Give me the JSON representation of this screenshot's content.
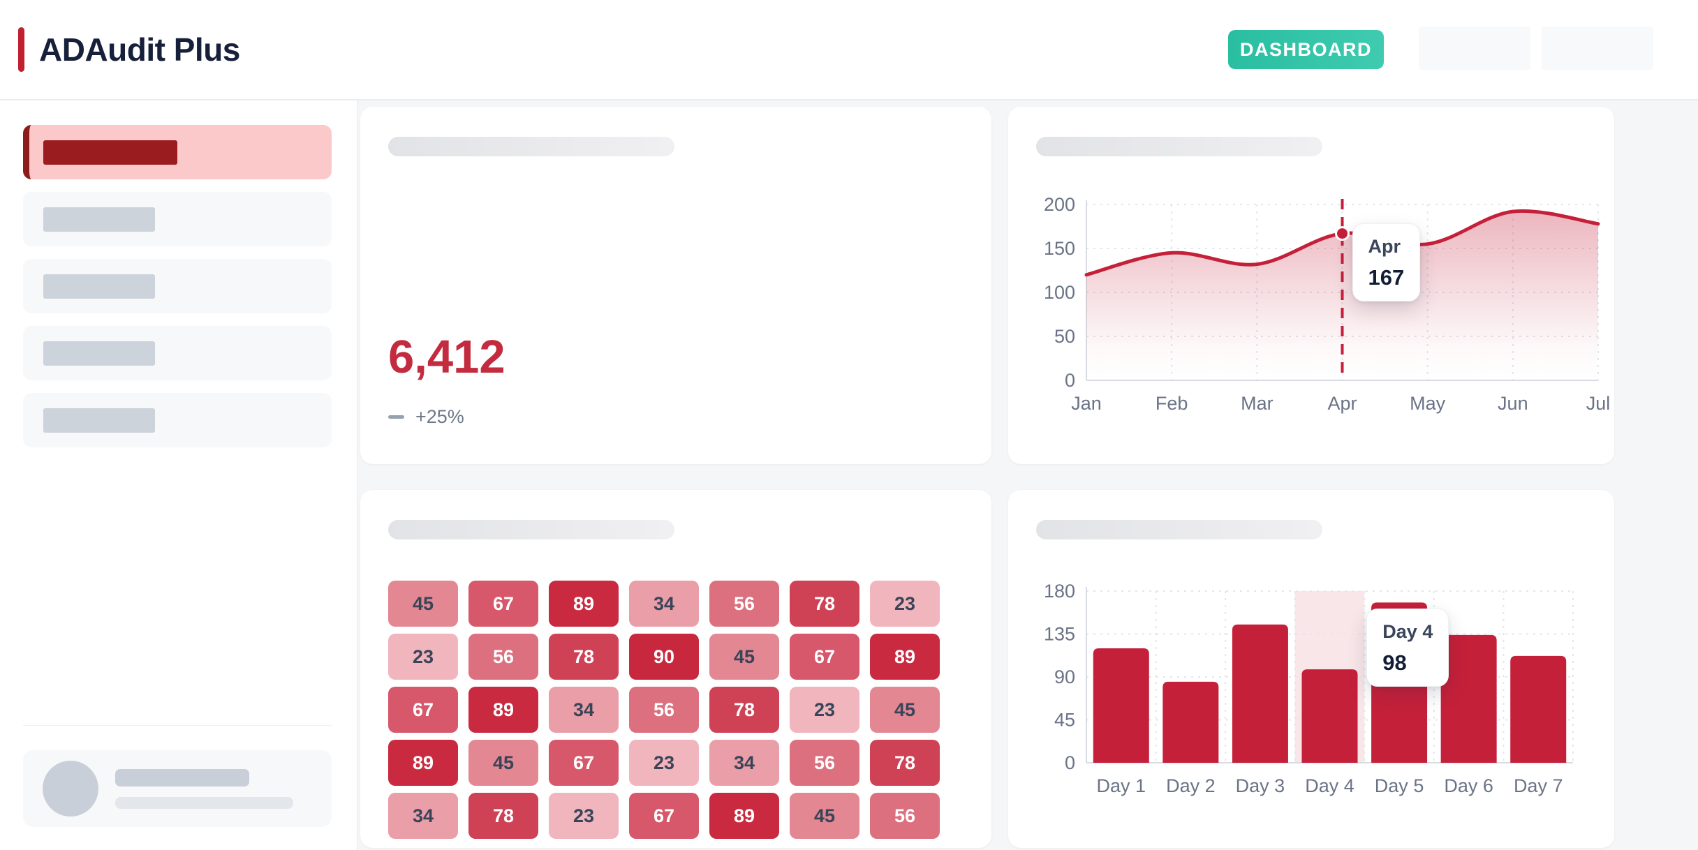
{
  "header": {
    "title": "ADAudit Plus",
    "nav": {
      "dashboard_label": "DASHBOARD",
      "placeholder_button_count": 2
    },
    "colors": {
      "accent_red": "#C0202F",
      "teal_start": "#2ABEA1",
      "teal_end": "#3FCBB0"
    }
  },
  "sidebar": {
    "items": [
      {
        "state": "active"
      },
      {
        "state": "placeholder"
      },
      {
        "state": "placeholder"
      },
      {
        "state": "placeholder"
      },
      {
        "state": "placeholder"
      }
    ],
    "user_card": {
      "avatar": "avatar-placeholder",
      "placeholder_lines": 2
    }
  },
  "stat_card": {
    "value": "6,412",
    "trend_label": "+25%",
    "value_color": "#C32B3E"
  },
  "chart_data": [
    {
      "type": "line",
      "x": [
        "Jan",
        "Feb",
        "Mar",
        "Apr",
        "May",
        "Jun",
        "Jul"
      ],
      "values": [
        120,
        145,
        132,
        167,
        155,
        192,
        178
      ],
      "ylim": [
        0,
        200
      ],
      "yticks": [
        0,
        50,
        100,
        150,
        200
      ],
      "grid": true,
      "legend": "none",
      "line_color": "#C5203A",
      "area_fill": "pink gradient fading to transparent",
      "highlight": {
        "x": "Apr",
        "value": 167,
        "tooltip_label": "Apr",
        "tooltip_value": "167"
      }
    },
    {
      "type": "heatmap",
      "rows": 5,
      "cols": 7,
      "values": [
        [
          45,
          67,
          89,
          34,
          56,
          78,
          23
        ],
        [
          23,
          56,
          78,
          90,
          45,
          67,
          89
        ],
        [
          67,
          89,
          34,
          56,
          78,
          23,
          45
        ],
        [
          89,
          45,
          67,
          23,
          34,
          56,
          78
        ],
        [
          34,
          78,
          23,
          67,
          89,
          45,
          56
        ]
      ],
      "value_range": [
        23,
        90
      ],
      "color_low": "#F0B5BD",
      "color_high": "#C8283E",
      "text_dark_below": 50,
      "text_dark_color": "#3A4458",
      "text_light_color": "#FFFFFF"
    },
    {
      "type": "bar",
      "categories": [
        "Day 1",
        "Day 2",
        "Day 3",
        "Day 4",
        "Day 5",
        "Day 6",
        "Day 7"
      ],
      "values": [
        120,
        85,
        145,
        98,
        168,
        134,
        112
      ],
      "ylim": [
        0,
        180
      ],
      "yticks": [
        0,
        45,
        90,
        135,
        180
      ],
      "grid": true,
      "bar_color": "#C5203A",
      "highlight": {
        "category": "Day 4",
        "index": 3,
        "value": 98,
        "band_color": "#F8E6E8",
        "tooltip_label": "Day 4",
        "tooltip_value": "98"
      }
    }
  ]
}
